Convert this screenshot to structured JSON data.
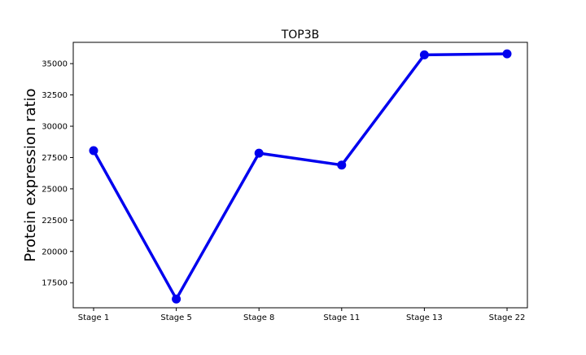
{
  "chart_data": {
    "type": "line",
    "title": "TOP3B",
    "xlabel": "",
    "ylabel": "Protein expression ratio",
    "categories": [
      "Stage 1",
      "Stage 5",
      "Stage 8",
      "Stage 11",
      "Stage 13",
      "Stage 22"
    ],
    "series": [
      {
        "values": [
          28050,
          16200,
          27850,
          26900,
          35700,
          35780
        ],
        "color": "#0000ee"
      }
    ],
    "ylim": [
      15500,
      36700
    ],
    "yticks": [
      17500,
      20000,
      22500,
      25000,
      27500,
      30000,
      32500,
      35000
    ],
    "grid": false,
    "marker": "circle"
  }
}
